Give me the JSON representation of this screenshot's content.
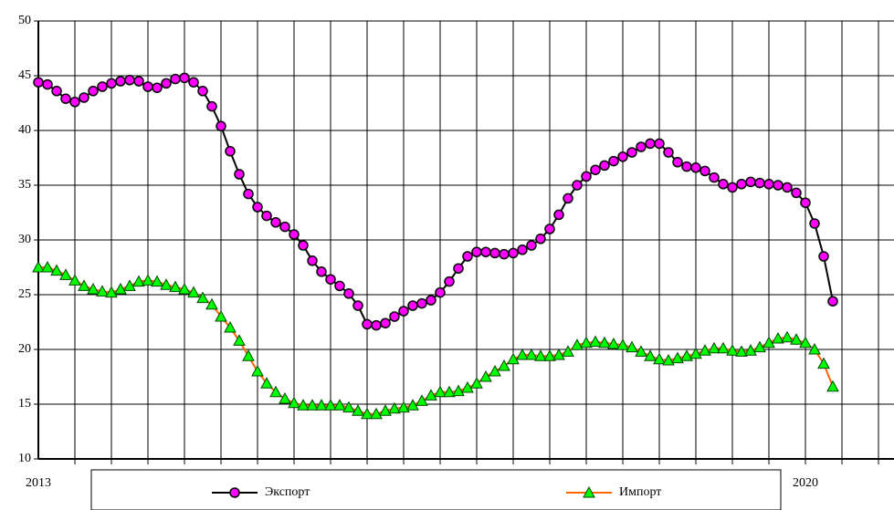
{
  "chart_data": {
    "type": "line",
    "categories": [
      "2013",
      null,
      null,
      null,
      null,
      null,
      null,
      null,
      null,
      null,
      null,
      null,
      null,
      null,
      null,
      null,
      null,
      null,
      null,
      null,
      null,
      null,
      null,
      null,
      null,
      null,
      null,
      null,
      null,
      null,
      null,
      null,
      null,
      null,
      null,
      null,
      null,
      null,
      null,
      null,
      null,
      null,
      null,
      null,
      null,
      null,
      null,
      null,
      null,
      null,
      null,
      null,
      null,
      null,
      null,
      null,
      null,
      null,
      null,
      null,
      null,
      null,
      null,
      null,
      null,
      null,
      null,
      null,
      null,
      null,
      null,
      null,
      null,
      null,
      null,
      null,
      null,
      null,
      null,
      null,
      null,
      null,
      null,
      null,
      "2020",
      null,
      null,
      null
    ],
    "series": [
      {
        "name": "Экспорт",
        "color": "#000000",
        "marker": "circle",
        "marker_color": "#ff00ff",
        "values": [
          44.4,
          44.2,
          43.6,
          42.9,
          42.6,
          43.0,
          43.6,
          44.0,
          44.3,
          44.5,
          44.6,
          44.5,
          44.0,
          43.9,
          44.3,
          44.7,
          44.8,
          44.4,
          43.6,
          42.2,
          40.4,
          38.1,
          36.0,
          34.2,
          33.0,
          32.2,
          31.6,
          31.2,
          30.5,
          29.5,
          28.1,
          27.1,
          26.4,
          25.8,
          25.1,
          24.0,
          22.3,
          22.2,
          22.4,
          23.0,
          23.5,
          24.0,
          24.2,
          24.5,
          25.2,
          26.2,
          27.4,
          28.5,
          28.9,
          28.9,
          28.8,
          28.7,
          28.8,
          29.1,
          29.5,
          30.1,
          31.0,
          32.3,
          33.8,
          35.0,
          35.8,
          36.4,
          36.8,
          37.2,
          37.6,
          38.0,
          38.5,
          38.8,
          38.8,
          38.0,
          37.1,
          36.7,
          36.6,
          36.3,
          35.7,
          35.1,
          34.8,
          35.1,
          35.3,
          35.2,
          35.1,
          35.0,
          34.8,
          34.3,
          33.4,
          31.5,
          28.5,
          24.4
        ]
      },
      {
        "name": "Импорт",
        "color": "#ff6600",
        "marker": "triangle",
        "marker_color": "#00ff00",
        "values": [
          27.5,
          27.5,
          27.2,
          26.8,
          26.3,
          25.8,
          25.5,
          25.3,
          25.2,
          25.5,
          25.8,
          26.2,
          26.3,
          26.2,
          25.9,
          25.7,
          25.5,
          25.2,
          24.7,
          24.1,
          23.0,
          22.0,
          20.8,
          19.4,
          18.0,
          16.9,
          16.1,
          15.5,
          15.1,
          14.9,
          14.9,
          14.9,
          14.9,
          14.9,
          14.7,
          14.4,
          14.1,
          14.1,
          14.4,
          14.6,
          14.7,
          14.9,
          15.3,
          15.8,
          16.1,
          16.1,
          16.2,
          16.5,
          16.9,
          17.5,
          18.0,
          18.5,
          19.1,
          19.5,
          19.5,
          19.4,
          19.4,
          19.5,
          19.8,
          20.4,
          20.6,
          20.7,
          20.6,
          20.5,
          20.4,
          20.2,
          19.8,
          19.4,
          19.1,
          19.0,
          19.2,
          19.4,
          19.6,
          19.9,
          20.1,
          20.1,
          19.9,
          19.8,
          19.9,
          20.2,
          20.6,
          21.0,
          21.1,
          20.9,
          20.6,
          20.0,
          18.7,
          16.6
        ]
      }
    ],
    "ylim": [
      10,
      50
    ],
    "yticks": [
      10,
      15,
      20,
      25,
      30,
      35,
      40,
      45,
      50
    ],
    "grid": true,
    "legend": "bottom"
  }
}
